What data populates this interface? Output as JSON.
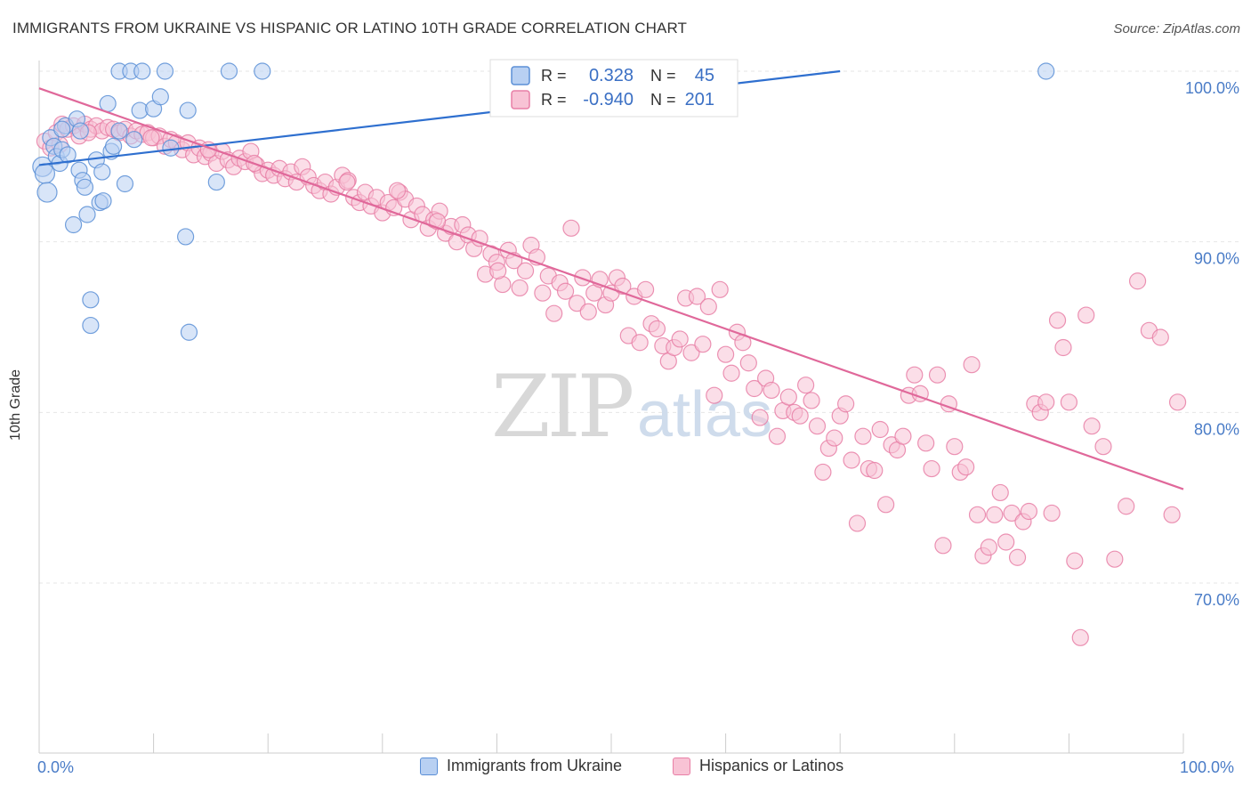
{
  "chart_data": {
    "type": "scatter",
    "title": "IMMIGRANTS FROM UKRAINE VS HISPANIC OR LATINO 10TH GRADE CORRELATION CHART",
    "source": "Source: ZipAtlas.com",
    "ylabel": "10th Grade",
    "xlabel": "",
    "xlim": [
      0,
      100
    ],
    "ylim": [
      60,
      100
    ],
    "x_tick_labels": [
      "0.0%",
      "100.0%"
    ],
    "y_ticks": [
      {
        "value": 100,
        "label": "100.0%"
      },
      {
        "value": 90,
        "label": "90.0%"
      },
      {
        "value": 80,
        "label": "80.0%"
      },
      {
        "value": 70,
        "label": "70.0%"
      }
    ],
    "watermark": {
      "zip": "ZIP",
      "atlas": "atlas"
    },
    "legend_box": [
      {
        "r_label": "R =",
        "r_value": "0.328",
        "n_label": "N =",
        "n_value": "45"
      },
      {
        "r_label": "R =",
        "r_value": "-0.940",
        "n_label": "N =",
        "n_value": "201"
      }
    ],
    "series": [
      {
        "name": "Immigrants from Ukraine",
        "color": "#5b8fd6",
        "fill": "#b8d0f2",
        "trend": {
          "x": [
            0,
            70
          ],
          "y": [
            94.5,
            100
          ]
        },
        "points": [
          [
            0.3,
            94.4
          ],
          [
            0.5,
            94.0
          ],
          [
            0.7,
            92.9
          ],
          [
            1.0,
            96.1
          ],
          [
            1.3,
            95.6
          ],
          [
            1.5,
            95.0
          ],
          [
            1.8,
            94.6
          ],
          [
            2.0,
            95.4
          ],
          [
            2.3,
            96.8
          ],
          [
            2.5,
            95.1
          ],
          [
            3.0,
            91.0
          ],
          [
            3.3,
            97.2
          ],
          [
            3.5,
            94.2
          ],
          [
            3.8,
            93.6
          ],
          [
            4.0,
            93.2
          ],
          [
            4.2,
            91.6
          ],
          [
            4.5,
            86.6
          ],
          [
            4.5,
            85.1
          ],
          [
            5.0,
            94.8
          ],
          [
            5.3,
            92.3
          ],
          [
            5.6,
            92.4
          ],
          [
            6.0,
            98.1
          ],
          [
            6.3,
            95.3
          ],
          [
            6.5,
            95.6
          ],
          [
            7.0,
            100
          ],
          [
            7.5,
            93.4
          ],
          [
            8.0,
            100
          ],
          [
            8.3,
            96.0
          ],
          [
            8.8,
            97.7
          ],
          [
            9.0,
            100
          ],
          [
            10.0,
            97.8
          ],
          [
            10.6,
            98.5
          ],
          [
            11.0,
            100
          ],
          [
            11.5,
            95.5
          ],
          [
            12.8,
            90.3
          ],
          [
            13.0,
            97.7
          ],
          [
            13.1,
            84.7
          ],
          [
            15.5,
            93.5
          ],
          [
            16.6,
            100
          ],
          [
            19.5,
            100
          ],
          [
            88.0,
            100
          ],
          [
            5.5,
            94.1
          ],
          [
            3.6,
            96.5
          ],
          [
            7.0,
            96.5
          ],
          [
            2.0,
            96.6
          ]
        ]
      },
      {
        "name": "Hispanics or Latinos",
        "color": "#e87fa6",
        "fill": "#f8c3d5",
        "trend": {
          "x": [
            0,
            100
          ],
          "y": [
            99,
            75.5
          ]
        },
        "points": [
          [
            0.5,
            95.9
          ],
          [
            1.0,
            95.5
          ],
          [
            1.5,
            96.4
          ],
          [
            2.0,
            96.9
          ],
          [
            2.5,
            96.6
          ],
          [
            3.0,
            96.8
          ],
          [
            3.5,
            96.2
          ],
          [
            4.0,
            96.9
          ],
          [
            4.5,
            96.6
          ],
          [
            5.0,
            96.8
          ],
          [
            5.5,
            96.5
          ],
          [
            6.0,
            96.7
          ],
          [
            6.5,
            96.6
          ],
          [
            7.0,
            96.4
          ],
          [
            7.5,
            96.6
          ],
          [
            8.0,
            96.2
          ],
          [
            8.5,
            96.5
          ],
          [
            9.0,
            96.3
          ],
          [
            9.5,
            96.4
          ],
          [
            10.0,
            96.1
          ],
          [
            10.5,
            96.2
          ],
          [
            11.0,
            95.6
          ],
          [
            11.5,
            96.0
          ],
          [
            12.0,
            95.8
          ],
          [
            12.5,
            95.4
          ],
          [
            13.0,
            95.8
          ],
          [
            13.5,
            95.1
          ],
          [
            14.0,
            95.5
          ],
          [
            14.5,
            95.0
          ],
          [
            15.0,
            95.2
          ],
          [
            15.5,
            94.6
          ],
          [
            16.0,
            95.3
          ],
          [
            16.5,
            94.8
          ],
          [
            17.0,
            94.4
          ],
          [
            17.5,
            94.9
          ],
          [
            18.0,
            94.7
          ],
          [
            18.5,
            95.3
          ],
          [
            19.0,
            94.5
          ],
          [
            19.5,
            94.0
          ],
          [
            20.0,
            94.2
          ],
          [
            20.5,
            93.9
          ],
          [
            21.0,
            94.3
          ],
          [
            21.5,
            93.7
          ],
          [
            22.0,
            94.1
          ],
          [
            22.5,
            93.5
          ],
          [
            23.0,
            94.4
          ],
          [
            23.5,
            93.8
          ],
          [
            24.0,
            93.3
          ],
          [
            24.5,
            93.0
          ],
          [
            25.0,
            93.5
          ],
          [
            25.5,
            92.8
          ],
          [
            26.0,
            93.2
          ],
          [
            26.5,
            93.9
          ],
          [
            27.0,
            93.6
          ],
          [
            27.5,
            92.6
          ],
          [
            28.0,
            92.3
          ],
          [
            28.5,
            92.9
          ],
          [
            29.0,
            92.1
          ],
          [
            29.5,
            92.6
          ],
          [
            30.0,
            91.7
          ],
          [
            30.5,
            92.3
          ],
          [
            31.0,
            92.0
          ],
          [
            31.5,
            92.9
          ],
          [
            32.0,
            92.5
          ],
          [
            32.5,
            91.3
          ],
          [
            33.0,
            92.1
          ],
          [
            33.5,
            91.6
          ],
          [
            34.0,
            90.8
          ],
          [
            34.5,
            91.3
          ],
          [
            35.0,
            91.8
          ],
          [
            35.5,
            90.5
          ],
          [
            36.0,
            90.9
          ],
          [
            36.5,
            90.0
          ],
          [
            37.0,
            91.0
          ],
          [
            37.5,
            90.4
          ],
          [
            38.0,
            89.6
          ],
          [
            38.5,
            90.2
          ],
          [
            39.0,
            88.1
          ],
          [
            39.5,
            89.3
          ],
          [
            40.0,
            88.8
          ],
          [
            40.5,
            87.5
          ],
          [
            41.0,
            89.5
          ],
          [
            41.5,
            88.9
          ],
          [
            42.0,
            87.3
          ],
          [
            42.5,
            88.3
          ],
          [
            43.0,
            89.8
          ],
          [
            43.5,
            89.1
          ],
          [
            44.0,
            87.0
          ],
          [
            44.5,
            88.0
          ],
          [
            45.0,
            85.8
          ],
          [
            45.5,
            87.6
          ],
          [
            46.0,
            87.1
          ],
          [
            46.5,
            90.8
          ],
          [
            47.0,
            86.4
          ],
          [
            47.5,
            87.9
          ],
          [
            48.0,
            85.9
          ],
          [
            48.5,
            87.0
          ],
          [
            49.0,
            87.8
          ],
          [
            49.5,
            86.3
          ],
          [
            50.0,
            87.0
          ],
          [
            50.5,
            87.9
          ],
          [
            51.0,
            87.4
          ],
          [
            51.5,
            84.5
          ],
          [
            52.0,
            86.8
          ],
          [
            52.5,
            84.1
          ],
          [
            53.0,
            87.2
          ],
          [
            53.5,
            85.2
          ],
          [
            54.0,
            84.9
          ],
          [
            54.5,
            83.9
          ],
          [
            55.0,
            83.0
          ],
          [
            55.5,
            83.8
          ],
          [
            56.0,
            84.3
          ],
          [
            56.5,
            86.7
          ],
          [
            57.0,
            83.5
          ],
          [
            57.5,
            86.8
          ],
          [
            58.0,
            84.0
          ],
          [
            58.5,
            86.2
          ],
          [
            59.0,
            81.0
          ],
          [
            59.5,
            87.2
          ],
          [
            60.0,
            83.4
          ],
          [
            60.5,
            82.3
          ],
          [
            61.0,
            84.7
          ],
          [
            61.5,
            84.1
          ],
          [
            62.0,
            82.9
          ],
          [
            62.5,
            81.4
          ],
          [
            63.0,
            79.7
          ],
          [
            63.5,
            82.0
          ],
          [
            64.0,
            81.3
          ],
          [
            64.5,
            78.6
          ],
          [
            65.0,
            80.1
          ],
          [
            65.5,
            80.9
          ],
          [
            66.0,
            80.0
          ],
          [
            66.5,
            79.8
          ],
          [
            67.0,
            81.6
          ],
          [
            67.5,
            80.7
          ],
          [
            68.0,
            79.2
          ],
          [
            68.5,
            76.5
          ],
          [
            69.0,
            77.9
          ],
          [
            69.5,
            78.5
          ],
          [
            70.0,
            79.8
          ],
          [
            70.5,
            80.5
          ],
          [
            71.0,
            77.2
          ],
          [
            71.5,
            73.5
          ],
          [
            72.0,
            78.6
          ],
          [
            72.5,
            76.7
          ],
          [
            73.0,
            76.6
          ],
          [
            73.5,
            79.0
          ],
          [
            74.0,
            74.6
          ],
          [
            74.5,
            78.1
          ],
          [
            75.0,
            77.8
          ],
          [
            75.5,
            78.6
          ],
          [
            76.0,
            81.0
          ],
          [
            76.5,
            82.2
          ],
          [
            77.0,
            81.1
          ],
          [
            77.5,
            78.2
          ],
          [
            78.0,
            76.7
          ],
          [
            78.5,
            82.2
          ],
          [
            79.0,
            72.2
          ],
          [
            79.5,
            80.5
          ],
          [
            80.0,
            78.0
          ],
          [
            80.5,
            76.5
          ],
          [
            81.0,
            76.8
          ],
          [
            81.5,
            82.8
          ],
          [
            82.0,
            74.0
          ],
          [
            82.5,
            71.6
          ],
          [
            83.0,
            72.1
          ],
          [
            83.5,
            74.0
          ],
          [
            84.0,
            75.3
          ],
          [
            84.5,
            72.4
          ],
          [
            85.0,
            74.1
          ],
          [
            85.5,
            71.5
          ],
          [
            86.0,
            73.6
          ],
          [
            86.5,
            74.2
          ],
          [
            87.0,
            80.5
          ],
          [
            87.5,
            80.0
          ],
          [
            88.0,
            80.6
          ],
          [
            88.5,
            74.1
          ],
          [
            89.0,
            85.4
          ],
          [
            89.5,
            83.8
          ],
          [
            90.0,
            80.6
          ],
          [
            90.5,
            71.3
          ],
          [
            91.0,
            66.8
          ],
          [
            91.5,
            85.7
          ],
          [
            92.0,
            79.2
          ],
          [
            93.0,
            78.0
          ],
          [
            94.0,
            71.4
          ],
          [
            95.0,
            74.5
          ],
          [
            96.0,
            87.7
          ],
          [
            97.0,
            84.8
          ],
          [
            98.0,
            84.4
          ],
          [
            99.0,
            74.0
          ],
          [
            99.5,
            80.6
          ],
          [
            1.8,
            95.7
          ],
          [
            4.3,
            96.4
          ],
          [
            9.8,
            96.1
          ],
          [
            14.8,
            95.4
          ],
          [
            18.8,
            94.6
          ],
          [
            26.9,
            93.5
          ],
          [
            31.3,
            93.0
          ],
          [
            34.8,
            91.2
          ],
          [
            40.1,
            88.3
          ]
        ]
      }
    ]
  },
  "legend_bottom": [
    "Immigrants from Ukraine",
    "Hispanics or Latinos"
  ]
}
